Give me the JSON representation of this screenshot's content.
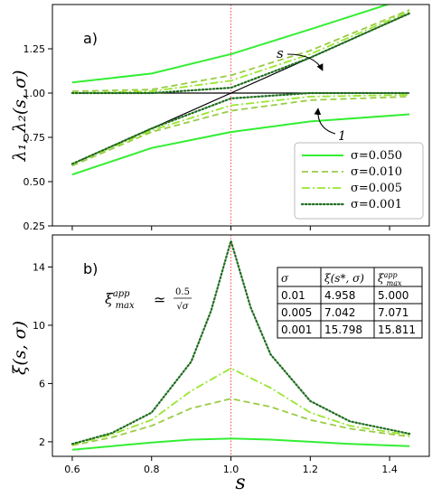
{
  "chart_data": [
    {
      "type": "line",
      "panel_label": "a)",
      "ylabel": "λ₁, λ₂(s, σ)",
      "xlim": [
        0.55,
        1.5
      ],
      "ylim": [
        0.25,
        1.5
      ],
      "yticks": [
        "0.25",
        "0.50",
        "0.75",
        "1.00",
        "1.25"
      ],
      "ytick_values": [
        0.25,
        0.5,
        0.75,
        1.0,
        1.25
      ],
      "vline_x": 1.0,
      "legend_location": "lower-right",
      "reference": {
        "x": [
          0.6,
          0.8,
          1.0,
          1.2,
          1.45
        ],
        "line_s": [
          0.6,
          0.8,
          1.0,
          1.2,
          1.45
        ],
        "line_one": [
          1.0,
          1.0,
          1.0,
          1.0,
          1.0
        ]
      },
      "annotations": [
        {
          "text": "s",
          "x": 1.22,
          "y": 1.27
        },
        {
          "text": "1",
          "x": 1.22,
          "y": 0.94
        }
      ],
      "series": [
        {
          "name": "σ=0.050",
          "style": "solid",
          "x": [
            0.6,
            0.8,
            1.0,
            1.2,
            1.45
          ],
          "upper": [
            1.06,
            1.11,
            1.22,
            1.36,
            1.54
          ],
          "lower": [
            0.54,
            0.69,
            0.78,
            0.84,
            0.88
          ]
        },
        {
          "name": "σ=0.010",
          "style": "dashed",
          "x": [
            0.6,
            0.8,
            1.0,
            1.2,
            1.45
          ],
          "upper": [
            1.01,
            1.02,
            1.1,
            1.24,
            1.47
          ],
          "lower": [
            0.59,
            0.78,
            0.9,
            0.96,
            0.98
          ]
        },
        {
          "name": "σ=0.005",
          "style": "dashdot",
          "x": [
            0.6,
            0.8,
            1.0,
            1.2,
            1.45
          ],
          "upper": [
            1.0,
            1.01,
            1.07,
            1.22,
            1.46
          ],
          "lower": [
            0.6,
            0.79,
            0.93,
            0.98,
            0.99
          ]
        },
        {
          "name": "σ=0.001",
          "style": "dotted",
          "x": [
            0.6,
            0.8,
            1.0,
            1.2,
            1.45
          ],
          "upper": [
            1.0,
            1.0,
            1.03,
            1.2,
            1.45
          ],
          "lower": [
            0.6,
            0.8,
            0.97,
            1.0,
            1.0
          ]
        }
      ]
    },
    {
      "type": "line",
      "panel_label": "b)",
      "ylabel": "ξ(s, σ)",
      "xlabel": "s",
      "xlim": [
        0.55,
        1.5
      ],
      "ylim": [
        1.0,
        16.2
      ],
      "xticks": [
        "0.6",
        "0.8",
        "1.0",
        "1.2",
        "1.4"
      ],
      "xtick_values": [
        0.6,
        0.8,
        1.0,
        1.2,
        1.4
      ],
      "yticks": [
        "2",
        "6",
        "10",
        "14"
      ],
      "ytick_values": [
        2,
        6,
        10,
        14
      ],
      "vline_x": 1.0,
      "annotation": {
        "lhs": "ξ",
        "lhs_sup": "app",
        "lhs_sub": "max",
        "rel": "≃",
        "num": "0.5",
        "den": "√σ"
      },
      "series": [
        {
          "name": "σ=0.050",
          "style": "solid",
          "x": [
            0.6,
            0.7,
            0.8,
            0.9,
            1.0,
            1.1,
            1.2,
            1.3,
            1.45
          ],
          "y": [
            1.45,
            1.7,
            1.95,
            2.15,
            2.22,
            2.15,
            2.0,
            1.85,
            1.7
          ]
        },
        {
          "name": "σ=0.010",
          "style": "dashed",
          "x": [
            0.6,
            0.7,
            0.8,
            0.9,
            1.0,
            1.1,
            1.2,
            1.3,
            1.45
          ],
          "y": [
            1.75,
            2.3,
            3.1,
            4.3,
            4.958,
            4.4,
            3.5,
            2.9,
            2.35
          ]
        },
        {
          "name": "σ=0.005",
          "style": "dashdot",
          "x": [
            0.6,
            0.7,
            0.8,
            0.9,
            1.0,
            1.1,
            1.2,
            1.3,
            1.45
          ],
          "y": [
            1.8,
            2.5,
            3.5,
            5.5,
            7.042,
            5.7,
            4.0,
            3.1,
            2.45
          ]
        },
        {
          "name": "σ=0.001",
          "style": "dotted",
          "x": [
            0.6,
            0.7,
            0.8,
            0.9,
            0.95,
            1.0,
            1.05,
            1.1,
            1.2,
            1.3,
            1.45
          ],
          "y": [
            1.85,
            2.6,
            4.0,
            7.5,
            11.0,
            15.798,
            11.2,
            8.0,
            4.8,
            3.4,
            2.55
          ]
        }
      ],
      "table": {
        "headers": [
          {
            "base": "σ"
          },
          {
            "base": "ξ(s*, σ)"
          },
          {
            "base": "ξ",
            "sup": "app",
            "sub": "max"
          }
        ],
        "rows": [
          [
            "0.01",
            "4.958",
            "5.000"
          ],
          [
            "0.005",
            "7.042",
            "7.071"
          ],
          [
            "0.001",
            "15.798",
            "15.811"
          ]
        ]
      }
    }
  ],
  "colors": {
    "sigma_050": "#33ee33",
    "sigma_010": "#99cc44",
    "sigma_005": "#99e62e",
    "sigma_001": "#1f6e1f",
    "vline": "#ff4444",
    "reference": "#000000"
  }
}
